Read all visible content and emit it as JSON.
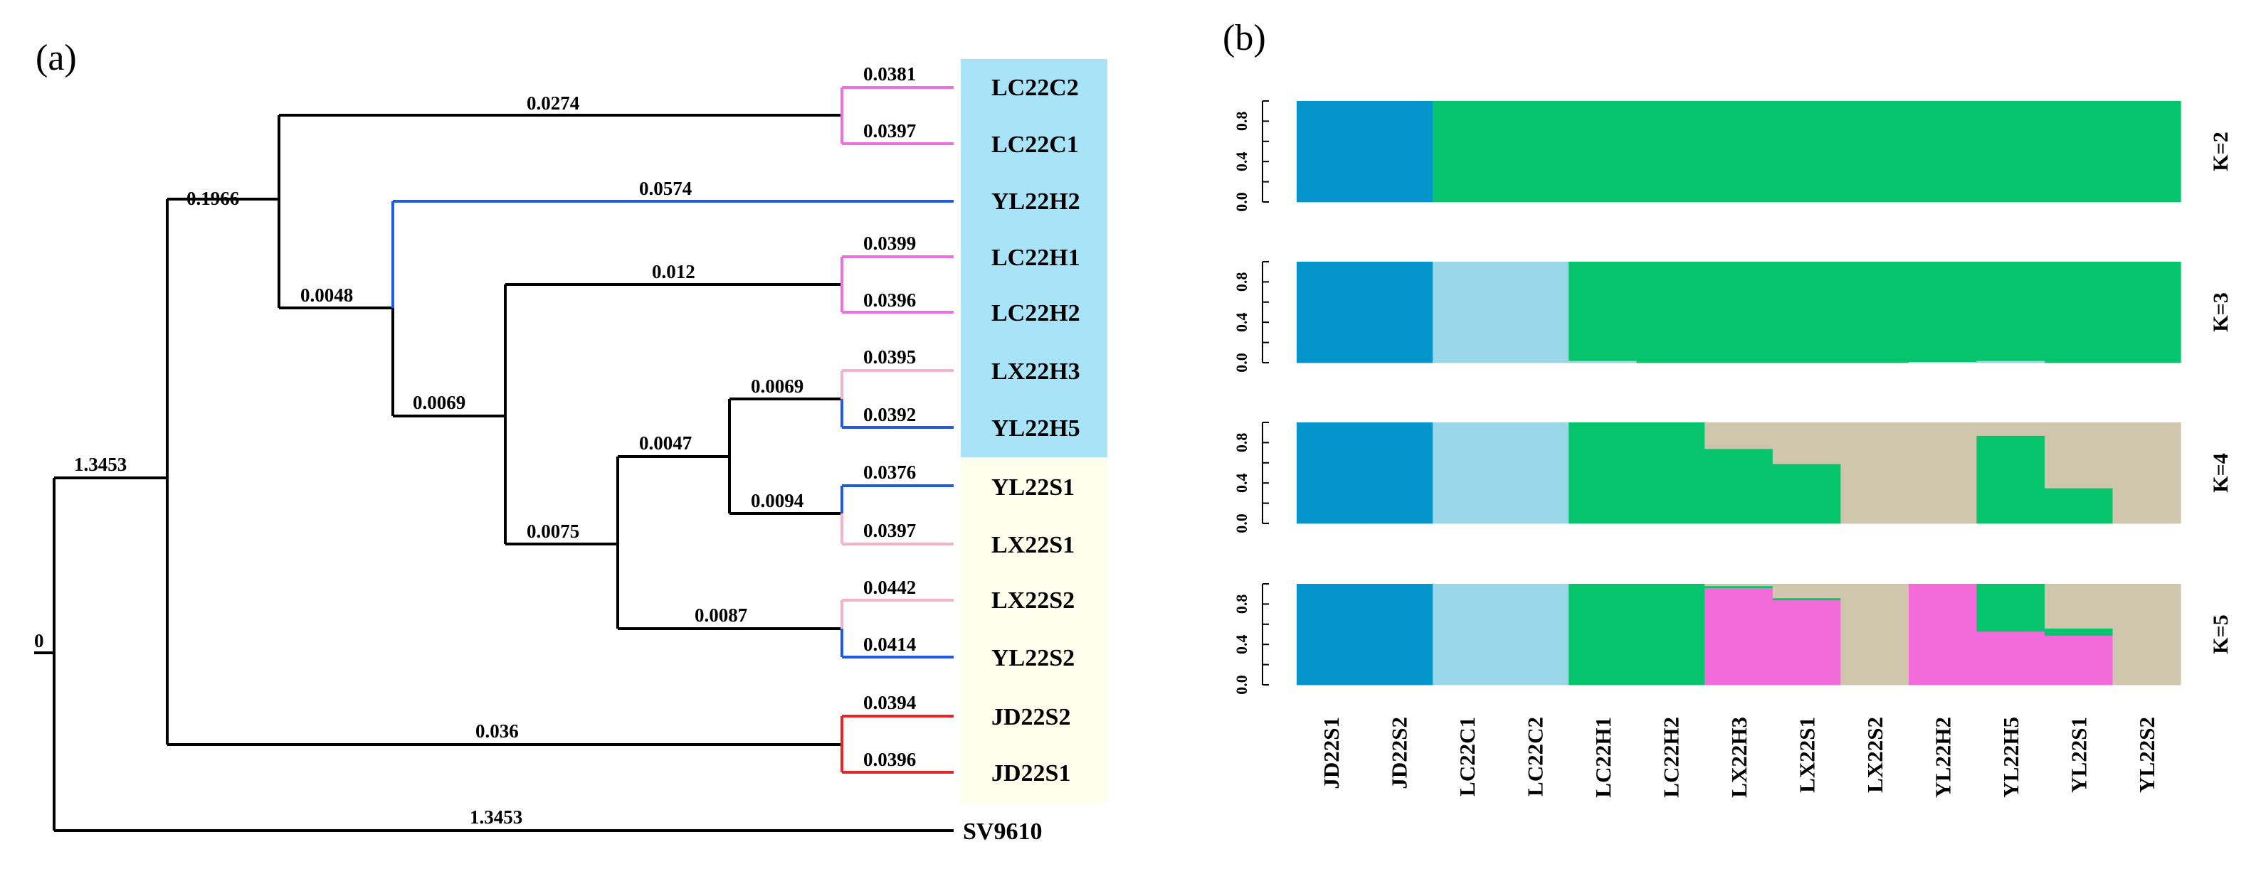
{
  "panel_a": {
    "label": "(a)",
    "root_label": "0",
    "leaves": [
      "LC22C2",
      "LC22C1",
      "YL22H2",
      "LC22H1",
      "LC22H2",
      "LX22H3",
      "YL22H5",
      "YL22S1",
      "LX22S1",
      "LX22S2",
      "YL22S2",
      "JD22S2",
      "JD22S1",
      "SV9610"
    ],
    "branch_labels": {
      "lc22c2": "0.0381",
      "lc22c1": "0.0397",
      "yl22h2": "0.0574",
      "lc22h1": "0.0399",
      "lc22h2": "0.0396",
      "lx22h3": "0.0395",
      "yl22h5": "0.0392",
      "yl22s1": "0.0376",
      "lx22s1": "0.0397",
      "lx22s2": "0.0442",
      "yl22s2": "0.0414",
      "jd22s2": "0.0394",
      "jd22s1": "0.0396",
      "sv9610": "1.3453",
      "lc_c_clade": "0.0274",
      "main_clade": "0.1966",
      "clade_h2_rest": "0.0048",
      "lc_h_clade": "0.012",
      "rest_clade": "0.0069",
      "big_clade": "0.0075",
      "s_clade": "0.0047",
      "h3_h5_clade": "0.0069",
      "s1_clade": "0.0094",
      "s2_clade": "0.0087",
      "jd_clade": "0.036",
      "ingroup": "1.3453"
    },
    "colors": {
      "black": "#000000",
      "pink_lc": "#EE6FE1",
      "blue_yl": "#1E5BE6",
      "pink_lx": "#F4B3C8",
      "red_jd": "#E8262A",
      "bg_blue": "#A9E3F8",
      "bg_cream": "#FEFEEC"
    }
  },
  "panel_b": {
    "label": "(b)",
    "samples": [
      "JD22S1",
      "JD22S2",
      "LC22C1",
      "LC22C2",
      "LC22H1",
      "LC22H2",
      "LX22H3",
      "LX22S1",
      "LX22S2",
      "YL22H2",
      "YL22H5",
      "YL22S1",
      "YL22S2"
    ],
    "y_ticks": [
      "0.0",
      "0.4",
      "0.8"
    ],
    "colors": {
      "dark_blue": "#0595CD",
      "light_blue": "#99D6E8",
      "green": "#06C46B",
      "tan": "#D0C6AE",
      "pink": "#F26BD8"
    },
    "chart_data": [
      {
        "type": "bar",
        "k_label": "K=2",
        "categories": [
          "JD22S1",
          "JD22S2",
          "LC22C1",
          "LC22C2",
          "LC22H1",
          "LC22H2",
          "LX22H3",
          "LX22S1",
          "LX22S2",
          "YL22H2",
          "YL22H5",
          "YL22S1",
          "YL22S2"
        ],
        "stacked": true,
        "series": [
          {
            "color": "dark_blue",
            "values": [
              1,
              1,
              0,
              0,
              0,
              0,
              0,
              0,
              0,
              0,
              0,
              0,
              0
            ]
          },
          {
            "color": "green",
            "values": [
              0,
              0,
              1,
              1,
              1,
              1,
              1,
              1,
              1,
              1,
              1,
              1,
              1
            ]
          }
        ],
        "ylim": [
          0,
          1
        ]
      },
      {
        "type": "bar",
        "k_label": "K=3",
        "categories": [
          "JD22S1",
          "JD22S2",
          "LC22C1",
          "LC22C2",
          "LC22H1",
          "LC22H2",
          "LX22H3",
          "LX22S1",
          "LX22S2",
          "YL22H2",
          "YL22H5",
          "YL22S1",
          "YL22S2"
        ],
        "stacked": true,
        "series": [
          {
            "color": "dark_blue",
            "values": [
              1,
              1,
              0,
              0,
              0,
              0,
              0,
              0,
              0,
              0,
              0,
              0,
              0
            ]
          },
          {
            "color": "light_blue",
            "values": [
              0,
              0,
              1,
              1,
              0.02,
              0,
              0,
              0,
              0,
              0.01,
              0.02,
              0,
              0
            ]
          },
          {
            "color": "green",
            "values": [
              0,
              0,
              0,
              0,
              0.98,
              1,
              1,
              1,
              1,
              0.99,
              0.98,
              1,
              1
            ]
          }
        ],
        "ylim": [
          0,
          1
        ]
      },
      {
        "type": "bar",
        "k_label": "K=4",
        "categories": [
          "JD22S1",
          "JD22S2",
          "LC22C1",
          "LC22C2",
          "LC22H1",
          "LC22H2",
          "LX22H3",
          "LX22S1",
          "LX22S2",
          "YL22H2",
          "YL22H5",
          "YL22S1",
          "YL22S2"
        ],
        "stacked": true,
        "series": [
          {
            "color": "dark_blue",
            "values": [
              1,
              1,
              0,
              0,
              0,
              0,
              0,
              0,
              0,
              0,
              0,
              0,
              0
            ]
          },
          {
            "color": "light_blue",
            "values": [
              0,
              0,
              1,
              1,
              0,
              0,
              0,
              0,
              0,
              0,
              0,
              0,
              0
            ]
          },
          {
            "color": "green",
            "values": [
              0,
              0,
              0,
              0,
              1,
              1,
              0.74,
              0.59,
              0,
              0,
              0.87,
              0.35,
              0
            ]
          },
          {
            "color": "tan",
            "values": [
              0,
              0,
              0,
              0,
              0,
              0,
              0.26,
              0.41,
              1,
              1,
              0.13,
              0.65,
              1
            ]
          }
        ],
        "ylim": [
          0,
          1
        ]
      },
      {
        "type": "bar",
        "k_label": "K=5",
        "categories": [
          "JD22S1",
          "JD22S2",
          "LC22C1",
          "LC22C2",
          "LC22H1",
          "LC22H2",
          "LX22H3",
          "LX22S1",
          "LX22S2",
          "YL22H2",
          "YL22H5",
          "YL22S1",
          "YL22S2"
        ],
        "stacked": true,
        "series": [
          {
            "color": "dark_blue",
            "values": [
              1,
              1,
              0,
              0,
              0,
              0,
              0,
              0,
              0,
              0,
              0,
              0,
              0
            ]
          },
          {
            "color": "light_blue",
            "values": [
              0,
              0,
              1,
              1,
              0,
              0,
              0,
              0,
              0,
              0,
              0,
              0,
              0
            ]
          },
          {
            "color": "pink",
            "values": [
              0,
              0,
              0,
              0,
              0,
              0,
              0.96,
              0.84,
              0,
              1,
              0.53,
              0.49,
              0
            ]
          },
          {
            "color": "green",
            "values": [
              0,
              0,
              0,
              0,
              1,
              1,
              0.02,
              0.02,
              0,
              0,
              0.47,
              0.07,
              0
            ]
          },
          {
            "color": "tan",
            "values": [
              0,
              0,
              0,
              0,
              0,
              0,
              0.02,
              0.14,
              1,
              0,
              0,
              0.44,
              1
            ]
          }
        ],
        "ylim": [
          0,
          1
        ]
      }
    ]
  }
}
